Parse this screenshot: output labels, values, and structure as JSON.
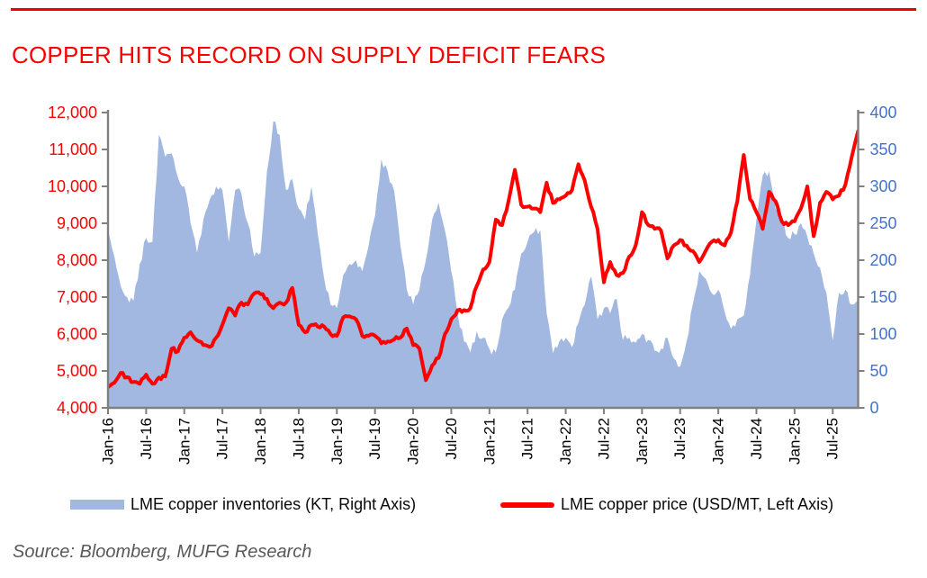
{
  "page": {
    "title": "COPPER HITS RECORD ON SUPPLY DEFICIT FEARS",
    "source_note": "Source: Bloomberg, MUFG Research"
  },
  "colors": {
    "title_red": "#ff0000",
    "top_rule_red": "#f10000",
    "price_line": "#ff0000",
    "inventory_area": "#a3b8e0",
    "left_axis_labels": "#ff0000",
    "right_axis_labels": "#4472c4",
    "x_axis_labels": "#000000",
    "axis_line": "#808080",
    "source_text": "#595959"
  },
  "chart_data": {
    "type": "area",
    "subtype": "combo: area (inventories, right axis) + line (price, left axis)",
    "frequency": "monthly",
    "x_start": "Jan-16",
    "x_end": "Nov-25",
    "x_tick_labels": [
      "Jan-16",
      "Jul-16",
      "Jan-17",
      "Jul-17",
      "Jan-18",
      "Jul-18",
      "Jan-19",
      "Jul-19",
      "Jan-20",
      "Jul-20",
      "Jan-21",
      "Jul-21",
      "Jan-22",
      "Jul-22",
      "Jan-23",
      "Jul-23",
      "Jan-24",
      "Jul-24",
      "Jan-25",
      "Jul-25"
    ],
    "left_axis": {
      "min": 4000,
      "max": 12000,
      "step": 1000,
      "tick_labels": [
        "12,000",
        "11,000",
        "10,000",
        "9,000",
        "8,000",
        "7,000",
        "6,000",
        "5,000",
        "4,000"
      ]
    },
    "right_axis": {
      "min": 0,
      "max": 400,
      "step": 50,
      "tick_labels": [
        "400",
        "350",
        "300",
        "250",
        "200",
        "150",
        "100",
        "50",
        "0"
      ]
    },
    "grid": "off",
    "legend_position": "bottom",
    "series": [
      {
        "name": "LME copper inventories (KT, Right Axis)",
        "type": "area",
        "axis": "right",
        "color": "#a3b8e0",
        "values": [
          240,
          205,
          165,
          150,
          145,
          195,
          230,
          225,
          370,
          340,
          345,
          312,
          300,
          250,
          210,
          255,
          282,
          300,
          295,
          225,
          295,
          290,
          250,
          205,
          210,
          320,
          388,
          370,
          295,
          310,
          270,
          255,
          300,
          235,
          175,
          140,
          135,
          180,
          195,
          200,
          185,
          220,
          260,
          337,
          320,
          294,
          220,
          160,
          140,
          160,
          200,
          255,
          278,
          240,
          185,
          128,
          90,
          75,
          104,
          95,
          80,
          75,
          120,
          136,
          160,
          209,
          225,
          238,
          241,
          128,
          74,
          90,
          95,
          82,
          115,
          140,
          178,
          120,
          135,
          128,
          148,
          92,
          95,
          88,
          100,
          92,
          77,
          80,
          95,
          67,
          56,
          90,
          140,
          185,
          175,
          155,
          160,
          130,
          107,
          120,
          125,
          180,
          255,
          315,
          320,
          270,
          250,
          230,
          235,
          250,
          232,
          209,
          190,
          156,
          91,
          156,
          160,
          140,
          146
        ]
      },
      {
        "name": "LME copper price (USD/MT, Left Axis)",
        "type": "line",
        "axis": "left",
        "color": "#ff0000",
        "values": [
          4560,
          4680,
          4950,
          4830,
          4700,
          4650,
          4900,
          4650,
          4820,
          4850,
          5600,
          5530,
          5900,
          6050,
          5830,
          5700,
          5650,
          5900,
          6250,
          6700,
          6500,
          6850,
          6800,
          7100,
          7080,
          6950,
          6700,
          6850,
          6850,
          7250,
          6250,
          6050,
          6250,
          6200,
          6200,
          6000,
          5950,
          6450,
          6480,
          6400,
          5950,
          5950,
          5950,
          5750,
          5800,
          5850,
          5900,
          6150,
          5700,
          5600,
          4750,
          5150,
          5350,
          6000,
          6400,
          6650,
          6650,
          6700,
          7300,
          7750,
          7950,
          9100,
          8950,
          9600,
          10450,
          9500,
          9450,
          9400,
          9300,
          10100,
          9550,
          9650,
          9750,
          9900,
          10600,
          10150,
          9450,
          8850,
          7400,
          7950,
          7600,
          7650,
          8100,
          8400,
          9300,
          8950,
          8850,
          8800,
          8050,
          8400,
          8550,
          8400,
          8250,
          7950,
          8250,
          8500,
          8550,
          8400,
          8750,
          9600,
          10850,
          9650,
          9300,
          8850,
          9850,
          9600,
          9050,
          8950,
          9050,
          9400,
          10000,
          8650,
          9550,
          9850,
          9650,
          9750,
          10050,
          10800,
          11500
        ]
      }
    ]
  }
}
